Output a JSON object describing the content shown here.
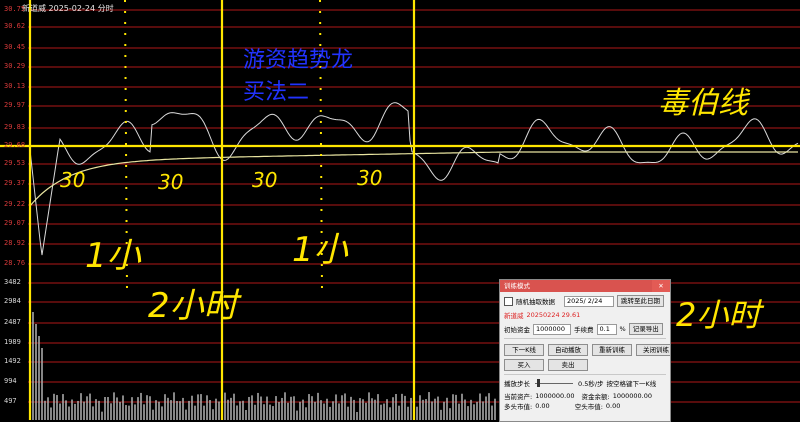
{
  "header": {
    "title": "新道威  2025-02-24 分时"
  },
  "price_axis": [
    "30.75",
    "30.62",
    "30.45",
    "30.29",
    "30.13",
    "29.97",
    "29.83",
    "29.68",
    "29.53",
    "29.37",
    "29.22",
    "29.07",
    "28.92",
    "28.76"
  ],
  "volume_axis": [
    "3482",
    "2984",
    "2487",
    "1989",
    "1492",
    "994",
    "497"
  ],
  "annotations": {
    "blue_title_1": "游资趋势龙",
    "blue_title_2": "买法二",
    "zero_line": "毒伯线",
    "m1": "30",
    "m2": "30",
    "m3": "30",
    "m4": "30",
    "h1": "1小",
    "h2": "1小",
    "two_hours_left": "2小时",
    "two_hours_right": "2小时"
  },
  "dialog": {
    "title": "训练模式",
    "close": "✕",
    "random_label": "随机抽取数据",
    "date_value": "2025/ 2/24",
    "jump_button": "跳转至此日期",
    "stock_label": "新道威",
    "stock_info": "20250224 29.61",
    "capital_label": "初始资金",
    "capital_value": "1000000",
    "fee_label": "手续费",
    "fee_value": "0.1",
    "fee_unit": "%",
    "export_button": "记录导出",
    "next_k_button": "下一K线",
    "auto_play_button": "自动播放",
    "restart_button": "重新训练",
    "close_train_button": "关闭训练",
    "buy_button": "买入",
    "sell_button": "卖出",
    "speed_label": "播放步长",
    "speed_value": "0.5秒/步",
    "shortcut_label": "按空格键下一K线",
    "total_asset_label": "当前资产:",
    "total_asset_value": "1000000.00",
    "cash_label": "资金余额:",
    "cash_value": "1000000.00",
    "long_label": "多头市值:",
    "long_value": "0.00",
    "short_label": "空头市值:",
    "short_value": "0.00"
  },
  "colors": {
    "background": "#000000",
    "grid_red": "#b01818",
    "hand_yellow": "#ffe600",
    "price_line": "#d9d9d9",
    "avg_line": "#e8e4a0",
    "blue_text": "#2233ff"
  }
}
